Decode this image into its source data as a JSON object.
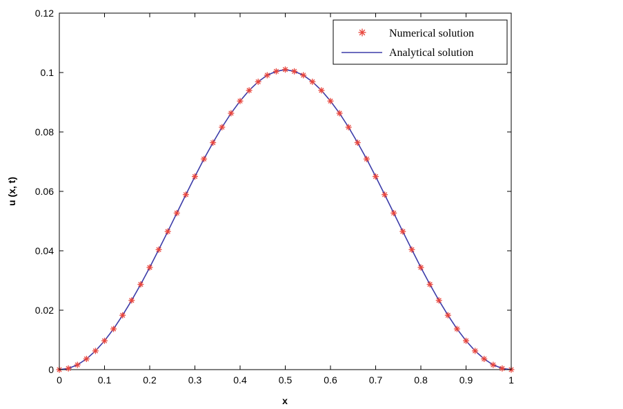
{
  "chart_data": {
    "type": "line",
    "title": "",
    "xlabel": "x",
    "ylabel": "u (x, t)",
    "xlim": [
      0,
      1
    ],
    "ylim": [
      0,
      0.12
    ],
    "xticks": [
      "0",
      "0.1",
      "0.2",
      "0.3",
      "0.4",
      "0.5",
      "0.6",
      "0.7",
      "0.8",
      "0.9",
      "1"
    ],
    "yticks": [
      "0",
      "0.02",
      "0.04",
      "0.06",
      "0.08",
      "0.1",
      "0.12"
    ],
    "grid": false,
    "legend_position": "top-right",
    "x": [
      0,
      0.02,
      0.04,
      0.06,
      0.08,
      0.1,
      0.12,
      0.14,
      0.16,
      0.18,
      0.2,
      0.22,
      0.24,
      0.26,
      0.28,
      0.3,
      0.32,
      0.34,
      0.36,
      0.38,
      0.4,
      0.42,
      0.44,
      0.46,
      0.48,
      0.5,
      0.52,
      0.54,
      0.56,
      0.58,
      0.6,
      0.62,
      0.64,
      0.66,
      0.68,
      0.7,
      0.72,
      0.74,
      0.76,
      0.78,
      0.8,
      0.82,
      0.84,
      0.86,
      0.88,
      0.9,
      0.92,
      0.94,
      0.96,
      0.98,
      1
    ],
    "series": [
      {
        "name": "Numerical solution",
        "style": "markers",
        "marker": "asterisk",
        "color": "#e8453c",
        "values": [
          0,
          0.0004,
          0.0016,
          0.0036,
          0.0063,
          0.0097,
          0.0137,
          0.0183,
          0.0233,
          0.0287,
          0.0344,
          0.0404,
          0.0465,
          0.0527,
          0.0589,
          0.065,
          0.0709,
          0.0764,
          0.0816,
          0.0863,
          0.0904,
          0.094,
          0.0969,
          0.0991,
          0.1004,
          0.101,
          0.1004,
          0.0991,
          0.0969,
          0.094,
          0.0904,
          0.0863,
          0.0816,
          0.0764,
          0.0709,
          0.065,
          0.0589,
          0.0527,
          0.0465,
          0.0404,
          0.0344,
          0.0287,
          0.0233,
          0.0183,
          0.0137,
          0.0097,
          0.0063,
          0.0036,
          0.0016,
          0.0004,
          0
        ]
      },
      {
        "name": "Analytical solution",
        "style": "line",
        "color": "#3b3ba8",
        "values": [
          0,
          0.0004,
          0.0016,
          0.0036,
          0.0063,
          0.0097,
          0.0137,
          0.0183,
          0.0233,
          0.0287,
          0.0344,
          0.0404,
          0.0465,
          0.0527,
          0.0589,
          0.065,
          0.0709,
          0.0764,
          0.0816,
          0.0863,
          0.0904,
          0.094,
          0.0969,
          0.0991,
          0.1004,
          0.101,
          0.1004,
          0.0991,
          0.0969,
          0.094,
          0.0904,
          0.0863,
          0.0816,
          0.0764,
          0.0709,
          0.065,
          0.0589,
          0.0527,
          0.0465,
          0.0404,
          0.0344,
          0.0287,
          0.0233,
          0.0183,
          0.0137,
          0.0097,
          0.0063,
          0.0036,
          0.0016,
          0.0004,
          0
        ]
      }
    ]
  }
}
